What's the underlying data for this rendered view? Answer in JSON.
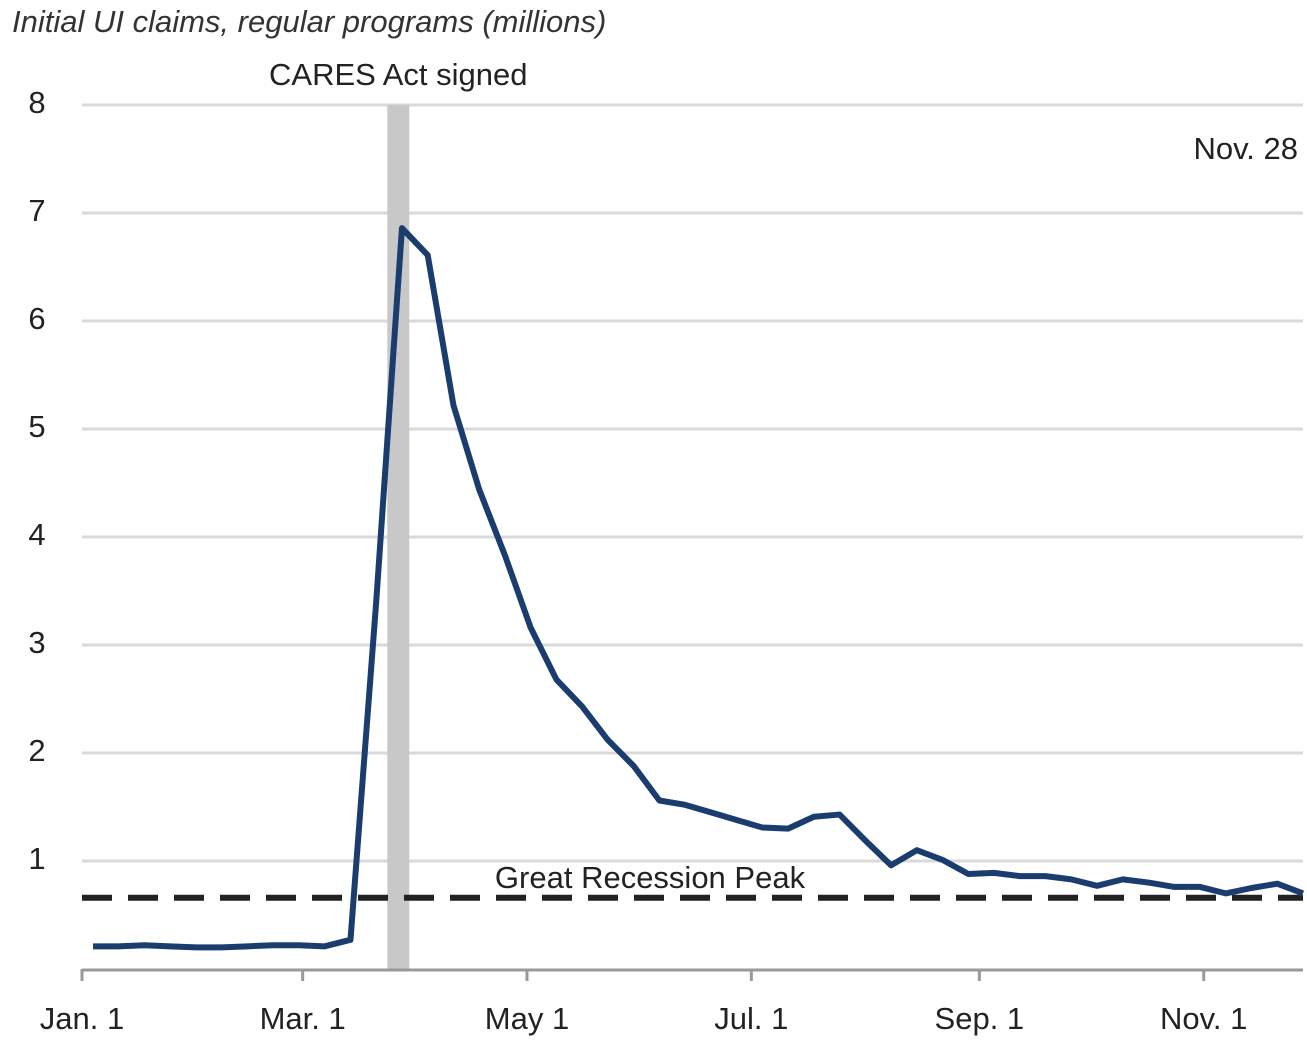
{
  "chart_data": {
    "type": "line",
    "title": "Initial UI claims, regular programs (millions)",
    "x": [
      3,
      10,
      17,
      24,
      31,
      38,
      45,
      52,
      59,
      66,
      73,
      80,
      87,
      94,
      101,
      108,
      115,
      122,
      129,
      136,
      143,
      150,
      157,
      164,
      171,
      178,
      185,
      192,
      199,
      206,
      213,
      220,
      227,
      234,
      241,
      248,
      255,
      262,
      269,
      276,
      283,
      290,
      297,
      304,
      311,
      318,
      325,
      332
    ],
    "series": [
      {
        "name": "Initial UI claims",
        "color": "#1b3d6e",
        "values": [
          0.21,
          0.21,
          0.22,
          0.21,
          0.2,
          0.2,
          0.21,
          0.22,
          0.22,
          0.21,
          0.27,
          3.4,
          6.86,
          6.61,
          5.22,
          4.44,
          3.83,
          3.16,
          2.68,
          2.43,
          2.12,
          1.88,
          1.56,
          1.52,
          1.45,
          1.38,
          1.31,
          1.3,
          1.41,
          1.43,
          1.19,
          0.96,
          1.1,
          1.01,
          0.88,
          0.89,
          0.86,
          0.86,
          0.83,
          0.77,
          0.83,
          0.8,
          0.76,
          0.76,
          0.7,
          0.75,
          0.79,
          0.7
        ]
      }
    ],
    "xlim": [
      0,
      332
    ],
    "xticks": [
      {
        "value": 0,
        "label": "Jan. 1"
      },
      {
        "value": 60,
        "label": "Mar. 1"
      },
      {
        "value": 121,
        "label": "May 1"
      },
      {
        "value": 182,
        "label": "Jul. 1"
      },
      {
        "value": 244,
        "label": "Sep. 1"
      },
      {
        "value": 305,
        "label": "Nov. 1"
      }
    ],
    "ylim": [
      0,
      8
    ],
    "yticks": [
      1,
      2,
      3,
      4,
      5,
      6,
      7,
      8
    ],
    "grid": true,
    "reference_line": {
      "label": "Great Recession Peak",
      "value": 0.66,
      "color": "#222"
    },
    "event": {
      "label": "CARES Act signed",
      "x": 86,
      "color": "#c8c8c8"
    },
    "annotation": "Nov. 28"
  }
}
